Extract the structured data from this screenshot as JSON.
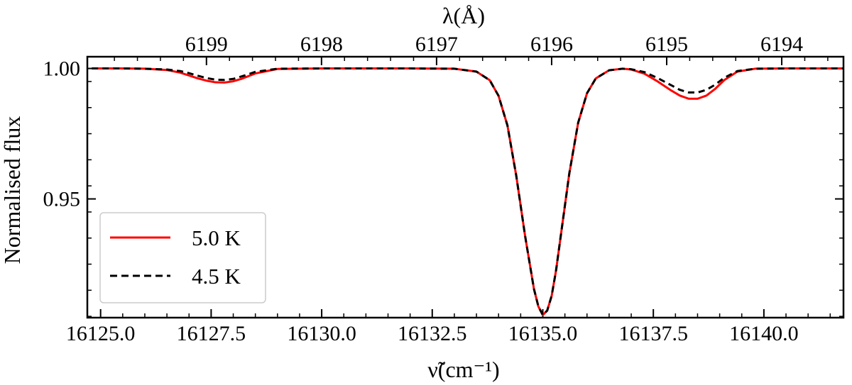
{
  "chart_data": {
    "type": "line",
    "xlabel": "ν̃(cm⁻¹)",
    "ylabel": "Normalised flux",
    "top_xlabel": "λ(Å)",
    "xlim": [
      16124.7,
      16141.8
    ],
    "ylim": [
      0.9045,
      1.0045
    ],
    "x_ticks": [
      16125.0,
      16127.5,
      16130.0,
      16132.5,
      16135.0,
      16137.5,
      16140.0
    ],
    "x_tick_labels": [
      "16125.0",
      "16127.5",
      "16130.0",
      "16132.5",
      "16135.0",
      "16137.5",
      "16140.0"
    ],
    "y_ticks": [
      0.95,
      1.0
    ],
    "y_tick_labels": [
      "0.95",
      "1.00"
    ],
    "top_ticks": [
      6199,
      6198,
      6197,
      6196,
      6195,
      6194
    ],
    "top_tick_labels": [
      "6199",
      "6198",
      "6197",
      "6196",
      "6195",
      "6194"
    ],
    "grid": false,
    "legend_position": "lower-left",
    "series": [
      {
        "name": "5.0 K",
        "color": "#ff0000",
        "style": "solid",
        "x": [
          16124.8,
          16125.5,
          16126.0,
          16126.5,
          16126.8,
          16127.0,
          16127.2,
          16127.4,
          16127.6,
          16127.8,
          16128.0,
          16128.2,
          16128.5,
          16129.0,
          16130.0,
          16131.0,
          16132.0,
          16133.0,
          16133.5,
          16133.8,
          16134.0,
          16134.2,
          16134.4,
          16134.6,
          16134.8,
          16134.9,
          16135.0,
          16135.1,
          16135.2,
          16135.3,
          16135.4,
          16135.6,
          16135.8,
          16136.0,
          16136.2,
          16136.5,
          16136.8,
          16137.0,
          16137.3,
          16137.6,
          16137.9,
          16138.1,
          16138.3,
          16138.5,
          16138.7,
          16138.9,
          16139.1,
          16139.4,
          16139.8,
          16140.5,
          16141.2,
          16141.8
        ],
        "y": [
          1.0,
          1.0,
          0.9999,
          0.9994,
          0.9984,
          0.9973,
          0.9962,
          0.9953,
          0.9947,
          0.9946,
          0.9951,
          0.9961,
          0.9981,
          0.9998,
          1.0,
          1.0,
          1.0,
          0.9999,
          0.9988,
          0.9955,
          0.9895,
          0.9782,
          0.9589,
          0.9358,
          0.9155,
          0.9088,
          0.9055,
          0.9072,
          0.9128,
          0.9226,
          0.935,
          0.9598,
          0.9792,
          0.9905,
          0.9962,
          0.9993,
          0.9999,
          0.9996,
          0.998,
          0.995,
          0.9916,
          0.9896,
          0.9884,
          0.9884,
          0.9896,
          0.9922,
          0.9955,
          0.9988,
          0.9999,
          1.0,
          1.0,
          1.0
        ]
      },
      {
        "name": "4.5 K",
        "color": "#000000",
        "style": "dashed",
        "x": [
          16124.8,
          16125.5,
          16126.0,
          16126.5,
          16126.8,
          16127.0,
          16127.2,
          16127.4,
          16127.6,
          16127.8,
          16128.0,
          16128.2,
          16128.5,
          16129.0,
          16130.0,
          16131.0,
          16132.0,
          16133.0,
          16133.5,
          16133.8,
          16134.0,
          16134.2,
          16134.4,
          16134.6,
          16134.8,
          16134.9,
          16135.0,
          16135.1,
          16135.2,
          16135.3,
          16135.4,
          16135.6,
          16135.8,
          16136.0,
          16136.2,
          16136.5,
          16136.8,
          16137.0,
          16137.3,
          16137.6,
          16137.9,
          16138.1,
          16138.3,
          16138.5,
          16138.7,
          16138.9,
          16139.1,
          16139.4,
          16139.8,
          16140.5,
          16141.2,
          16141.8
        ],
        "y": [
          1.0,
          1.0,
          0.9999,
          0.9996,
          0.999,
          0.9982,
          0.9972,
          0.9963,
          0.9957,
          0.9956,
          0.996,
          0.997,
          0.9987,
          0.9999,
          1.0,
          1.0,
          1.0,
          0.9999,
          0.9988,
          0.9955,
          0.9895,
          0.9782,
          0.9589,
          0.9358,
          0.9155,
          0.9088,
          0.9055,
          0.9072,
          0.9128,
          0.9226,
          0.935,
          0.9598,
          0.9792,
          0.9905,
          0.9962,
          0.9993,
          0.9999,
          0.9997,
          0.9986,
          0.9963,
          0.9936,
          0.9918,
          0.9908,
          0.9908,
          0.9918,
          0.9938,
          0.9964,
          0.999,
          0.9999,
          1.0,
          1.0,
          1.0
        ]
      }
    ]
  }
}
